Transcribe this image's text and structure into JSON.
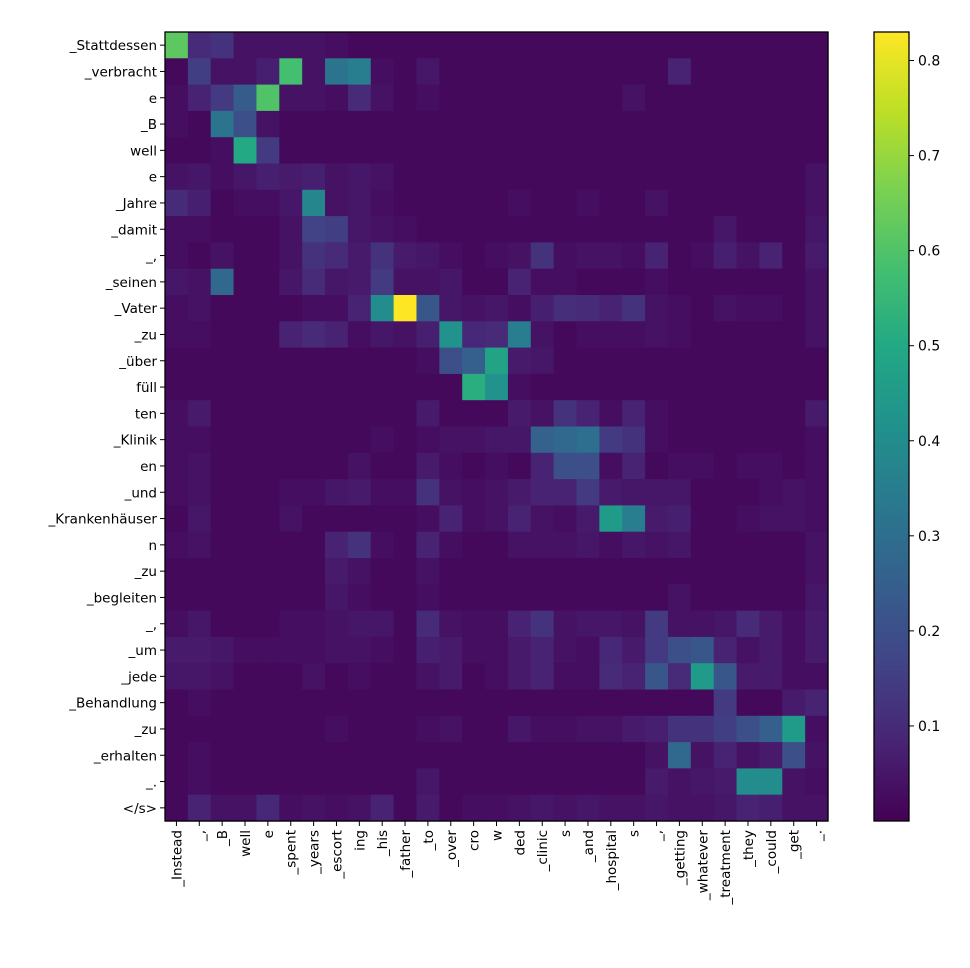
{
  "chart_data": {
    "type": "heatmap",
    "title": "",
    "xlabel": "",
    "ylabel": "",
    "x_labels": [
      "_Instead",
      "_,",
      "_B",
      "well",
      "e",
      "_spent",
      "_years",
      "_escort",
      "ing",
      "_his",
      "_father",
      "_to",
      "_over",
      "cro",
      "w",
      "ded",
      "_clinic",
      "s",
      "_and",
      "_hospital",
      "s",
      "_,",
      "_getting",
      "_whatever",
      "_treatment",
      "_they",
      "_could",
      "_get",
      "_."
    ],
    "y_labels": [
      "_Stattdessen",
      "_verbracht",
      "e",
      "_B",
      "well",
      "e",
      "_Jahre",
      "_damit",
      "_,",
      "_seinen",
      "_Vater",
      "_zu",
      "_über",
      "füll",
      "ten",
      "_Klinik",
      "en",
      "_und",
      "_Krankenhäuser",
      "n",
      "_zu",
      "_begleiten",
      "_,",
      "_um",
      "_jede",
      "_Behandlung",
      "_zu",
      "_erhalten",
      "_.",
      "</s>"
    ],
    "values": [
      [
        0.62,
        0.1,
        0.12,
        0.04,
        0.04,
        0.04,
        0.04,
        0.03,
        0.02,
        0.02,
        0.02,
        0.02,
        0.02,
        0.02,
        0.02,
        0.02,
        0.02,
        0.02,
        0.02,
        0.02,
        0.02,
        0.02,
        0.02,
        0.02,
        0.02,
        0.02,
        0.02,
        0.02,
        0.02
      ],
      [
        0.02,
        0.15,
        0.04,
        0.04,
        0.07,
        0.58,
        0.04,
        0.32,
        0.35,
        0.03,
        0.02,
        0.05,
        0.02,
        0.02,
        0.02,
        0.02,
        0.02,
        0.02,
        0.02,
        0.02,
        0.02,
        0.02,
        0.08,
        0.02,
        0.02,
        0.02,
        0.02,
        0.02,
        0.02
      ],
      [
        0.03,
        0.08,
        0.14,
        0.24,
        0.6,
        0.04,
        0.04,
        0.03,
        0.1,
        0.04,
        0.02,
        0.03,
        0.02,
        0.02,
        0.02,
        0.02,
        0.02,
        0.02,
        0.02,
        0.02,
        0.04,
        0.02,
        0.02,
        0.02,
        0.02,
        0.02,
        0.02,
        0.02,
        0.02
      ],
      [
        0.03,
        0.02,
        0.32,
        0.2,
        0.04,
        0.02,
        0.02,
        0.02,
        0.02,
        0.02,
        0.02,
        0.02,
        0.02,
        0.02,
        0.02,
        0.02,
        0.02,
        0.02,
        0.02,
        0.02,
        0.02,
        0.02,
        0.02,
        0.02,
        0.02,
        0.02,
        0.02,
        0.02,
        0.02
      ],
      [
        0.02,
        0.02,
        0.03,
        0.5,
        0.14,
        0.02,
        0.02,
        0.02,
        0.02,
        0.02,
        0.02,
        0.02,
        0.02,
        0.02,
        0.02,
        0.02,
        0.02,
        0.02,
        0.02,
        0.02,
        0.02,
        0.02,
        0.02,
        0.02,
        0.02,
        0.02,
        0.02,
        0.02,
        0.02
      ],
      [
        0.04,
        0.05,
        0.03,
        0.05,
        0.07,
        0.06,
        0.07,
        0.04,
        0.05,
        0.04,
        0.02,
        0.02,
        0.02,
        0.02,
        0.02,
        0.02,
        0.02,
        0.02,
        0.02,
        0.02,
        0.02,
        0.02,
        0.02,
        0.02,
        0.02,
        0.02,
        0.02,
        0.02,
        0.04
      ],
      [
        0.1,
        0.07,
        0.02,
        0.03,
        0.03,
        0.05,
        0.38,
        0.04,
        0.05,
        0.03,
        0.02,
        0.02,
        0.02,
        0.02,
        0.02,
        0.03,
        0.02,
        0.02,
        0.03,
        0.02,
        0.02,
        0.04,
        0.02,
        0.02,
        0.02,
        0.02,
        0.02,
        0.02,
        0.04
      ],
      [
        0.03,
        0.03,
        0.02,
        0.02,
        0.02,
        0.04,
        0.16,
        0.15,
        0.05,
        0.04,
        0.03,
        0.02,
        0.02,
        0.02,
        0.02,
        0.02,
        0.02,
        0.02,
        0.02,
        0.02,
        0.02,
        0.02,
        0.02,
        0.02,
        0.05,
        0.02,
        0.02,
        0.02,
        0.05
      ],
      [
        0.03,
        0.02,
        0.04,
        0.02,
        0.02,
        0.04,
        0.12,
        0.1,
        0.06,
        0.12,
        0.06,
        0.05,
        0.03,
        0.02,
        0.03,
        0.04,
        0.12,
        0.03,
        0.04,
        0.04,
        0.03,
        0.08,
        0.02,
        0.03,
        0.07,
        0.04,
        0.08,
        0.02,
        0.06
      ],
      [
        0.05,
        0.04,
        0.28,
        0.02,
        0.02,
        0.05,
        0.1,
        0.05,
        0.06,
        0.14,
        0.04,
        0.04,
        0.05,
        0.02,
        0.02,
        0.08,
        0.03,
        0.03,
        0.02,
        0.02,
        0.02,
        0.03,
        0.02,
        0.02,
        0.02,
        0.02,
        0.02,
        0.02,
        0.04
      ],
      [
        0.03,
        0.04,
        0.02,
        0.02,
        0.02,
        0.02,
        0.03,
        0.03,
        0.08,
        0.4,
        0.83,
        0.22,
        0.05,
        0.04,
        0.05,
        0.03,
        0.07,
        0.11,
        0.1,
        0.08,
        0.12,
        0.04,
        0.03,
        0.02,
        0.04,
        0.03,
        0.03,
        0.02,
        0.04
      ],
      [
        0.03,
        0.03,
        0.02,
        0.02,
        0.02,
        0.08,
        0.1,
        0.08,
        0.03,
        0.05,
        0.04,
        0.07,
        0.42,
        0.09,
        0.1,
        0.35,
        0.04,
        0.02,
        0.03,
        0.03,
        0.03,
        0.04,
        0.03,
        0.02,
        0.02,
        0.02,
        0.02,
        0.02,
        0.04
      ],
      [
        0.02,
        0.02,
        0.02,
        0.02,
        0.02,
        0.02,
        0.02,
        0.02,
        0.02,
        0.02,
        0.02,
        0.03,
        0.2,
        0.25,
        0.48,
        0.06,
        0.05,
        0.02,
        0.02,
        0.02,
        0.02,
        0.02,
        0.02,
        0.02,
        0.02,
        0.02,
        0.02,
        0.02,
        0.02
      ],
      [
        0.02,
        0.02,
        0.02,
        0.02,
        0.02,
        0.02,
        0.02,
        0.02,
        0.02,
        0.02,
        0.02,
        0.02,
        0.02,
        0.52,
        0.42,
        0.03,
        0.02,
        0.02,
        0.02,
        0.02,
        0.02,
        0.02,
        0.02,
        0.02,
        0.02,
        0.02,
        0.02,
        0.02,
        0.02
      ],
      [
        0.03,
        0.06,
        0.02,
        0.02,
        0.02,
        0.02,
        0.02,
        0.02,
        0.02,
        0.02,
        0.02,
        0.06,
        0.02,
        0.02,
        0.02,
        0.06,
        0.04,
        0.12,
        0.08,
        0.03,
        0.08,
        0.03,
        0.02,
        0.02,
        0.02,
        0.02,
        0.02,
        0.02,
        0.06
      ],
      [
        0.03,
        0.03,
        0.02,
        0.02,
        0.02,
        0.02,
        0.02,
        0.02,
        0.02,
        0.03,
        0.02,
        0.03,
        0.04,
        0.04,
        0.05,
        0.05,
        0.26,
        0.28,
        0.3,
        0.14,
        0.12,
        0.03,
        0.02,
        0.02,
        0.02,
        0.02,
        0.02,
        0.02,
        0.03
      ],
      [
        0.03,
        0.04,
        0.02,
        0.02,
        0.02,
        0.02,
        0.02,
        0.02,
        0.04,
        0.02,
        0.02,
        0.06,
        0.03,
        0.02,
        0.03,
        0.02,
        0.08,
        0.2,
        0.2,
        0.03,
        0.08,
        0.02,
        0.03,
        0.03,
        0.02,
        0.03,
        0.03,
        0.02,
        0.03
      ],
      [
        0.03,
        0.04,
        0.02,
        0.02,
        0.02,
        0.03,
        0.03,
        0.05,
        0.06,
        0.03,
        0.03,
        0.12,
        0.04,
        0.03,
        0.04,
        0.06,
        0.08,
        0.08,
        0.14,
        0.06,
        0.05,
        0.05,
        0.05,
        0.02,
        0.02,
        0.02,
        0.03,
        0.04,
        0.03
      ],
      [
        0.02,
        0.05,
        0.02,
        0.02,
        0.02,
        0.04,
        0.02,
        0.02,
        0.02,
        0.02,
        0.02,
        0.03,
        0.08,
        0.03,
        0.04,
        0.08,
        0.04,
        0.03,
        0.06,
        0.45,
        0.35,
        0.06,
        0.07,
        0.02,
        0.02,
        0.03,
        0.04,
        0.04,
        0.03
      ],
      [
        0.03,
        0.04,
        0.02,
        0.02,
        0.02,
        0.02,
        0.02,
        0.08,
        0.12,
        0.03,
        0.02,
        0.08,
        0.03,
        0.02,
        0.02,
        0.04,
        0.04,
        0.04,
        0.05,
        0.03,
        0.05,
        0.04,
        0.05,
        0.02,
        0.02,
        0.02,
        0.02,
        0.02,
        0.04
      ],
      [
        0.02,
        0.02,
        0.02,
        0.02,
        0.02,
        0.02,
        0.02,
        0.06,
        0.04,
        0.02,
        0.02,
        0.04,
        0.02,
        0.02,
        0.02,
        0.02,
        0.02,
        0.02,
        0.02,
        0.02,
        0.02,
        0.02,
        0.02,
        0.02,
        0.02,
        0.02,
        0.02,
        0.02,
        0.04
      ],
      [
        0.02,
        0.02,
        0.02,
        0.02,
        0.02,
        0.02,
        0.02,
        0.05,
        0.03,
        0.02,
        0.02,
        0.03,
        0.02,
        0.02,
        0.02,
        0.02,
        0.02,
        0.02,
        0.02,
        0.02,
        0.02,
        0.02,
        0.04,
        0.02,
        0.02,
        0.02,
        0.02,
        0.02,
        0.05
      ],
      [
        0.03,
        0.05,
        0.02,
        0.02,
        0.02,
        0.03,
        0.03,
        0.04,
        0.05,
        0.05,
        0.02,
        0.1,
        0.04,
        0.03,
        0.03,
        0.08,
        0.12,
        0.04,
        0.05,
        0.05,
        0.04,
        0.14,
        0.04,
        0.04,
        0.05,
        0.1,
        0.06,
        0.03,
        0.06
      ],
      [
        0.06,
        0.06,
        0.05,
        0.03,
        0.03,
        0.03,
        0.03,
        0.04,
        0.04,
        0.03,
        0.02,
        0.07,
        0.06,
        0.03,
        0.03,
        0.06,
        0.08,
        0.04,
        0.03,
        0.09,
        0.06,
        0.14,
        0.2,
        0.22,
        0.08,
        0.04,
        0.06,
        0.03,
        0.06
      ],
      [
        0.05,
        0.05,
        0.04,
        0.02,
        0.02,
        0.02,
        0.04,
        0.02,
        0.03,
        0.02,
        0.02,
        0.04,
        0.06,
        0.02,
        0.03,
        0.06,
        0.08,
        0.03,
        0.03,
        0.1,
        0.08,
        0.22,
        0.1,
        0.45,
        0.22,
        0.06,
        0.06,
        0.03,
        0.03
      ],
      [
        0.02,
        0.03,
        0.02,
        0.02,
        0.02,
        0.02,
        0.02,
        0.02,
        0.02,
        0.02,
        0.02,
        0.02,
        0.02,
        0.02,
        0.02,
        0.02,
        0.02,
        0.02,
        0.02,
        0.02,
        0.02,
        0.02,
        0.02,
        0.02,
        0.14,
        0.02,
        0.02,
        0.06,
        0.08
      ],
      [
        0.02,
        0.02,
        0.02,
        0.02,
        0.02,
        0.02,
        0.02,
        0.03,
        0.02,
        0.02,
        0.02,
        0.03,
        0.04,
        0.02,
        0.02,
        0.05,
        0.03,
        0.03,
        0.04,
        0.04,
        0.06,
        0.07,
        0.12,
        0.12,
        0.15,
        0.2,
        0.25,
        0.45,
        0.03
      ],
      [
        0.02,
        0.03,
        0.02,
        0.02,
        0.02,
        0.02,
        0.02,
        0.02,
        0.02,
        0.02,
        0.02,
        0.02,
        0.02,
        0.02,
        0.02,
        0.02,
        0.02,
        0.02,
        0.02,
        0.02,
        0.02,
        0.04,
        0.28,
        0.04,
        0.08,
        0.04,
        0.06,
        0.2,
        0.04
      ],
      [
        0.02,
        0.03,
        0.02,
        0.02,
        0.02,
        0.02,
        0.02,
        0.02,
        0.02,
        0.02,
        0.02,
        0.05,
        0.02,
        0.02,
        0.02,
        0.02,
        0.02,
        0.02,
        0.02,
        0.02,
        0.02,
        0.06,
        0.04,
        0.05,
        0.06,
        0.4,
        0.4,
        0.04,
        0.03
      ],
      [
        0.02,
        0.08,
        0.04,
        0.04,
        0.09,
        0.03,
        0.04,
        0.03,
        0.04,
        0.08,
        0.02,
        0.06,
        0.02,
        0.03,
        0.03,
        0.04,
        0.05,
        0.04,
        0.05,
        0.04,
        0.04,
        0.05,
        0.04,
        0.04,
        0.05,
        0.08,
        0.07,
        0.04,
        0.04
      ]
    ],
    "vmin": 0.0,
    "vmax": 0.83,
    "colormap": "viridis",
    "colorbar_ticks": [
      "0.1",
      "0.2",
      "0.3",
      "0.4",
      "0.5",
      "0.6",
      "0.7",
      "0.8"
    ],
    "colorbar_tick_values": [
      0.1,
      0.2,
      0.3,
      0.4,
      0.5,
      0.6,
      0.7,
      0.8
    ],
    "grid": false
  }
}
